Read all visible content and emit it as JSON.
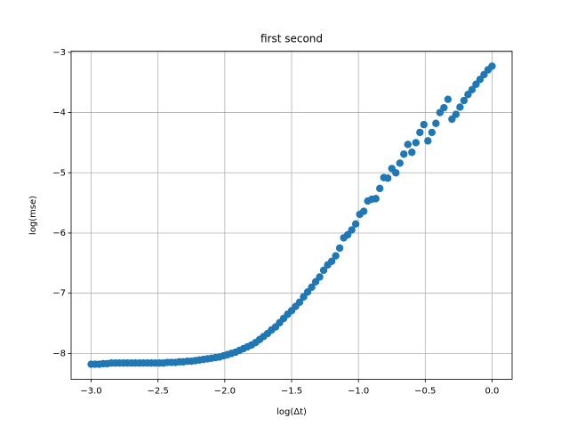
{
  "chart_data": {
    "type": "scatter",
    "title": "first second",
    "x_label": "log(Δt)",
    "y_label": "log(mse)",
    "color": "#1f77b4",
    "grid": true,
    "x": [
      -3.0,
      -2.97,
      -2.94,
      -2.91,
      -2.88,
      -2.85,
      -2.82,
      -2.79,
      -2.76,
      -2.73,
      -2.7,
      -2.67,
      -2.64,
      -2.61,
      -2.58,
      -2.55,
      -2.52,
      -2.49,
      -2.46,
      -2.43,
      -2.4,
      -2.37,
      -2.34,
      -2.31,
      -2.28,
      -2.25,
      -2.22,
      -2.19,
      -2.16,
      -2.13,
      -2.1,
      -2.07,
      -2.04,
      -2.01,
      -1.98,
      -1.95,
      -1.92,
      -1.89,
      -1.86,
      -1.83,
      -1.8,
      -1.77,
      -1.74,
      -1.71,
      -1.68,
      -1.65,
      -1.62,
      -1.59,
      -1.56,
      -1.53,
      -1.5,
      -1.47,
      -1.44,
      -1.41,
      -1.38,
      -1.35,
      -1.32,
      -1.29,
      -1.26,
      -1.23,
      -1.2,
      -1.17,
      -1.14,
      -1.11,
      -1.08,
      -1.05,
      -1.02,
      -0.99,
      -0.96,
      -0.93,
      -0.9,
      -0.87,
      -0.84,
      -0.81,
      -0.78,
      -0.75,
      -0.72,
      -0.69,
      -0.66,
      -0.63,
      -0.6,
      -0.57,
      -0.54,
      -0.51,
      -0.48,
      -0.45,
      -0.42,
      -0.39,
      -0.36,
      -0.33,
      -0.3,
      -0.27,
      -0.24,
      -0.21,
      -0.18,
      -0.15,
      -0.12,
      -0.09,
      -0.06,
      -0.03,
      0.0
    ],
    "values": [
      -8.18,
      -8.18,
      -8.18,
      -8.17,
      -8.17,
      -8.16,
      -8.16,
      -8.16,
      -8.16,
      -8.16,
      -8.16,
      -8.16,
      -8.16,
      -8.16,
      -8.16,
      -8.16,
      -8.16,
      -8.16,
      -8.16,
      -8.15,
      -8.15,
      -8.15,
      -8.14,
      -8.14,
      -8.13,
      -8.13,
      -8.12,
      -8.11,
      -8.1,
      -8.09,
      -8.08,
      -8.07,
      -8.06,
      -8.04,
      -8.02,
      -8.0,
      -7.98,
      -7.95,
      -7.92,
      -7.89,
      -7.86,
      -7.82,
      -7.77,
      -7.72,
      -7.67,
      -7.61,
      -7.56,
      -7.49,
      -7.42,
      -7.35,
      -7.29,
      -7.22,
      -7.15,
      -7.06,
      -6.98,
      -6.9,
      -6.81,
      -6.73,
      -6.62,
      -6.53,
      -6.47,
      -6.38,
      -6.25,
      -6.08,
      -6.03,
      -5.95,
      -5.85,
      -5.69,
      -5.64,
      -5.47,
      -5.44,
      -5.43,
      -5.26,
      -5.08,
      -5.09,
      -4.93,
      -5.0,
      -4.84,
      -4.69,
      -4.53,
      -4.66,
      -4.5,
      -4.33,
      -4.2,
      -4.47,
      -4.33,
      -4.18,
      -4.0,
      -3.92,
      -3.78,
      -4.11,
      -4.03,
      -3.91,
      -3.8,
      -3.7,
      -3.62,
      -3.53,
      -3.45,
      -3.37,
      -3.29,
      -3.23
    ],
    "xlim": [
      -3.15,
      0.15
    ],
    "ylim": [
      -8.43,
      -2.98
    ],
    "xticks": [
      {
        "value": -3,
        "label": "−3.0"
      },
      {
        "value": -2.5,
        "label": "−2.5"
      },
      {
        "value": -2,
        "label": "−2.0"
      },
      {
        "value": -1.5,
        "label": "−1.5"
      },
      {
        "value": -1,
        "label": "−1.0"
      },
      {
        "value": -0.5,
        "label": "−0.5"
      },
      {
        "value": 0,
        "label": "0.0"
      }
    ],
    "yticks": [
      {
        "value": -8,
        "label": "−8"
      },
      {
        "value": -7,
        "label": "−7"
      },
      {
        "value": -6,
        "label": "−6"
      },
      {
        "value": -5,
        "label": "−5"
      },
      {
        "value": -4,
        "label": "−4"
      },
      {
        "value": -3,
        "label": "−3"
      }
    ]
  }
}
